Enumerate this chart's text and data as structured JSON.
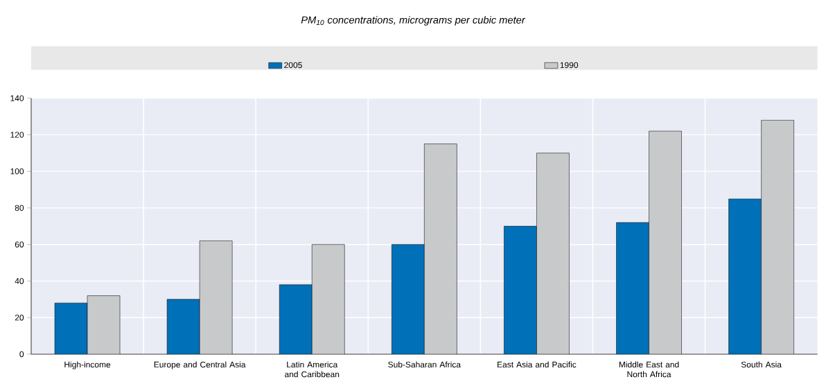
{
  "chart_data": {
    "type": "bar",
    "title": "PM$_{10}$ concentrations, micrograms per cubic meter",
    "categories": [
      "High-income",
      "Europe and Central Asia",
      "Latin America and Caribbean",
      "Sub-Saharan Africa",
      "East Asia and Pacific",
      "Middle East and North Africa",
      "South Asia"
    ],
    "series": [
      {
        "name": "2005",
        "color": "#0070b8",
        "values": [
          28,
          30,
          38,
          60,
          70,
          72,
          85
        ]
      },
      {
        "name": "1990",
        "color": "#c8c9cb",
        "values": [
          32,
          62,
          60,
          115,
          110,
          122,
          128
        ]
      }
    ],
    "ylim": [
      0,
      140
    ],
    "yticks": [
      0,
      20,
      40,
      60,
      80,
      100,
      120,
      140
    ],
    "grid": true,
    "legend": "top"
  }
}
